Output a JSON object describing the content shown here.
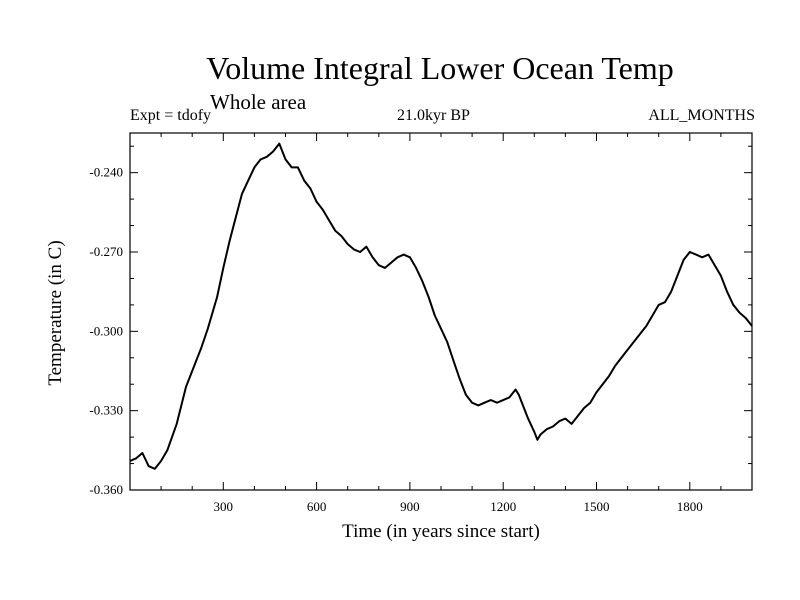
{
  "chart_data": {
    "type": "line",
    "title": "Volume Integral Lower Ocean Temp",
    "subtitle": "Whole area",
    "info_left": "Expt = tdofy",
    "info_center": "21.0kyr BP",
    "info_right": "ALL_MONTHS",
    "xlabel": "Time (in years since start)",
    "ylabel": "Temperature (in C)",
    "xlim": [
      0,
      2000
    ],
    "ylim": [
      -0.36,
      -0.225
    ],
    "x_ticks": [
      300,
      600,
      900,
      1200,
      1500,
      1800
    ],
    "x_tick_labels": [
      "300",
      "600",
      "900",
      "1200",
      "1500",
      "1800"
    ],
    "y_ticks": [
      -0.36,
      -0.33,
      -0.3,
      -0.27,
      -0.24
    ],
    "y_tick_labels": [
      "-0.360",
      "-0.330",
      "-0.300",
      "-0.270",
      "-0.240"
    ],
    "grid": false,
    "legend": "none",
    "line_color": "#000000",
    "series": [
      {
        "x": [
          0,
          20,
          40,
          60,
          80,
          100,
          120,
          150,
          180,
          200,
          230,
          250,
          280,
          300,
          320,
          340,
          360,
          380,
          400,
          420,
          440,
          460,
          480,
          500,
          520,
          540,
          560,
          580,
          600,
          620,
          640,
          660,
          680,
          700,
          720,
          740,
          760,
          780,
          800,
          820,
          840,
          860,
          880,
          900,
          920,
          940,
          960,
          980,
          1000,
          1020,
          1040,
          1060,
          1080,
          1100,
          1120,
          1140,
          1160,
          1180,
          1200,
          1220,
          1240,
          1250,
          1260,
          1280,
          1300,
          1310,
          1320,
          1340,
          1360,
          1380,
          1400,
          1420,
          1440,
          1460,
          1480,
          1500,
          1520,
          1540,
          1560,
          1580,
          1600,
          1620,
          1640,
          1660,
          1680,
          1700,
          1720,
          1740,
          1760,
          1780,
          1800,
          1820,
          1840,
          1860,
          1880,
          1900,
          1920,
          1940,
          1960,
          1980,
          2000
        ],
        "y": [
          -0.349,
          -0.348,
          -0.346,
          -0.351,
          -0.352,
          -0.349,
          -0.345,
          -0.335,
          -0.321,
          -0.315,
          -0.306,
          -0.299,
          -0.287,
          -0.276,
          -0.266,
          -0.257,
          -0.248,
          -0.243,
          -0.238,
          -0.235,
          -0.234,
          -0.232,
          -0.229,
          -0.235,
          -0.238,
          -0.238,
          -0.243,
          -0.246,
          -0.251,
          -0.254,
          -0.258,
          -0.262,
          -0.264,
          -0.267,
          -0.269,
          -0.27,
          -0.268,
          -0.272,
          -0.275,
          -0.276,
          -0.274,
          -0.272,
          -0.271,
          -0.272,
          -0.276,
          -0.281,
          -0.287,
          -0.294,
          -0.299,
          -0.304,
          -0.311,
          -0.318,
          -0.324,
          -0.327,
          -0.328,
          -0.327,
          -0.326,
          -0.327,
          -0.326,
          -0.325,
          -0.322,
          -0.324,
          -0.327,
          -0.333,
          -0.338,
          -0.341,
          -0.339,
          -0.337,
          -0.336,
          -0.334,
          -0.333,
          -0.335,
          -0.332,
          -0.329,
          -0.327,
          -0.323,
          -0.32,
          -0.317,
          -0.313,
          -0.31,
          -0.307,
          -0.304,
          -0.301,
          -0.298,
          -0.294,
          -0.29,
          -0.289,
          -0.285,
          -0.279,
          -0.273,
          -0.27,
          -0.271,
          -0.272,
          -0.271,
          -0.275,
          -0.279,
          -0.285,
          -0.29,
          -0.293,
          -0.295,
          -0.298
        ]
      }
    ]
  }
}
